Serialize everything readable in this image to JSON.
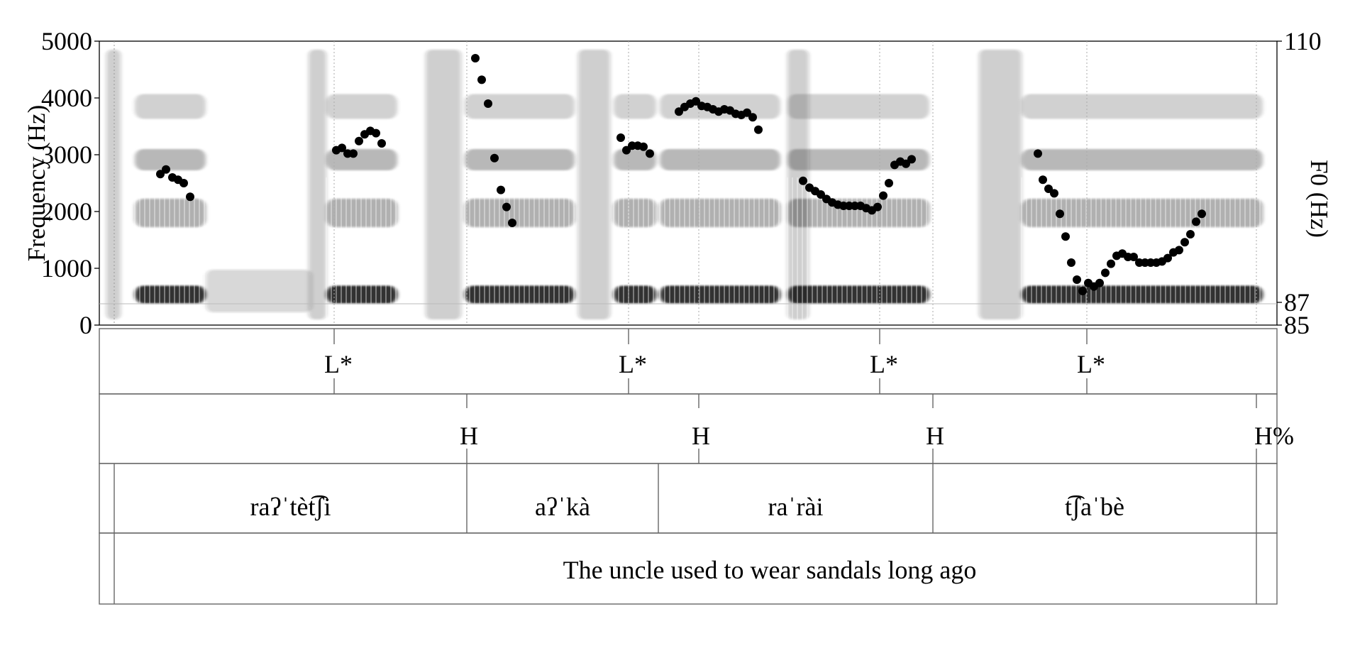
{
  "chart_data": {
    "type": "scatter",
    "left_axis": {
      "label": "Frequency (Hz)",
      "range": [
        0,
        5000
      ],
      "ticks": [
        "0",
        "1000",
        "2000",
        "3000",
        "4000",
        "5000"
      ]
    },
    "right_axis": {
      "label": "F0 (Hz)",
      "range": [
        85,
        110
      ],
      "ticks": [
        "85",
        "87",
        "110"
      ]
    },
    "grid": false,
    "f0_points": [
      [
        226,
        98.3
      ],
      [
        234,
        98.7
      ],
      [
        243,
        98.0
      ],
      [
        251,
        97.8
      ],
      [
        259,
        97.5
      ],
      [
        268,
        96.3
      ],
      [
        474,
        100.4
      ],
      [
        482,
        100.6
      ],
      [
        490,
        100.1
      ],
      [
        498,
        100.1
      ],
      [
        506,
        101.2
      ],
      [
        514,
        101.8
      ],
      [
        522,
        102.1
      ],
      [
        530,
        101.9
      ],
      [
        538,
        101.0
      ],
      [
        670,
        108.5
      ],
      [
        679,
        106.6
      ],
      [
        688,
        104.5
      ],
      [
        697,
        99.7
      ],
      [
        706,
        96.9
      ],
      [
        714,
        95.4
      ],
      [
        722,
        94.0
      ],
      [
        875,
        101.5
      ],
      [
        883,
        100.4
      ],
      [
        891,
        100.8
      ],
      [
        899,
        100.8
      ],
      [
        907,
        100.7
      ],
      [
        916,
        100.1
      ],
      [
        957,
        103.8
      ],
      [
        965,
        104.2
      ],
      [
        973,
        104.5
      ],
      [
        981,
        104.7
      ],
      [
        989,
        104.3
      ],
      [
        997,
        104.2
      ],
      [
        1005,
        104.0
      ],
      [
        1013,
        103.8
      ],
      [
        1021,
        104.0
      ],
      [
        1029,
        103.9
      ],
      [
        1037,
        103.6
      ],
      [
        1045,
        103.5
      ],
      [
        1053,
        103.7
      ],
      [
        1061,
        103.3
      ],
      [
        1069,
        102.2
      ],
      [
        1132,
        97.7
      ],
      [
        1141,
        97.1
      ],
      [
        1149,
        96.8
      ],
      [
        1157,
        96.5
      ],
      [
        1165,
        96.1
      ],
      [
        1173,
        95.8
      ],
      [
        1181,
        95.6
      ],
      [
        1189,
        95.5
      ],
      [
        1197,
        95.5
      ],
      [
        1205,
        95.5
      ],
      [
        1213,
        95.5
      ],
      [
        1221,
        95.3
      ],
      [
        1229,
        95.1
      ],
      [
        1237,
        95.4
      ],
      [
        1245,
        96.4
      ],
      [
        1253,
        97.5
      ],
      [
        1261,
        99.1
      ],
      [
        1269,
        99.4
      ],
      [
        1277,
        99.2
      ],
      [
        1285,
        99.6
      ],
      [
        1463,
        100.1
      ],
      [
        1470,
        97.8
      ],
      [
        1478,
        97.0
      ],
      [
        1486,
        96.6
      ],
      [
        1494,
        94.8
      ],
      [
        1502,
        92.8
      ],
      [
        1510,
        90.5
      ],
      [
        1518,
        89.0
      ],
      [
        1526,
        88.0
      ],
      [
        1534,
        88.7
      ],
      [
        1542,
        88.4
      ],
      [
        1550,
        88.7
      ],
      [
        1558,
        89.6
      ],
      [
        1566,
        90.4
      ],
      [
        1574,
        91.1
      ],
      [
        1582,
        91.3
      ],
      [
        1590,
        91.0
      ],
      [
        1598,
        91.0
      ],
      [
        1606,
        90.5
      ],
      [
        1614,
        90.5
      ],
      [
        1622,
        90.5
      ],
      [
        1630,
        90.5
      ],
      [
        1638,
        90.6
      ],
      [
        1646,
        90.9
      ],
      [
        1654,
        91.4
      ],
      [
        1662,
        91.6
      ],
      [
        1670,
        92.3
      ],
      [
        1678,
        93.0
      ],
      [
        1686,
        94.1
      ],
      [
        1694,
        94.8
      ]
    ],
    "x_units": "pixel column (time axis not labeled)"
  },
  "tiers": {
    "tones_starred": [
      {
        "label": "L*",
        "x": 471
      },
      {
        "label": "L*",
        "x": 886
      },
      {
        "label": "L*",
        "x": 1240
      },
      {
        "label": "L*",
        "x": 1532
      }
    ],
    "tones_boundary": [
      {
        "label": "H",
        "x": 658
      },
      {
        "label": "H",
        "x": 985
      },
      {
        "label": "H",
        "x": 1315
      },
      {
        "label": "H%",
        "x": 1771
      }
    ],
    "words": [
      {
        "text": "raʔˈtèt͡ʃi",
        "start": 161,
        "end": 658
      },
      {
        "text": "aʔˈkà",
        "start": 658,
        "end": 928
      },
      {
        "text": "raˈrài",
        "start": 928,
        "end": 1315
      },
      {
        "text": "t͡ʃaˈbè",
        "start": 1315,
        "end": 1771
      }
    ],
    "translation": "The uncle used to wear sandals long ago"
  }
}
